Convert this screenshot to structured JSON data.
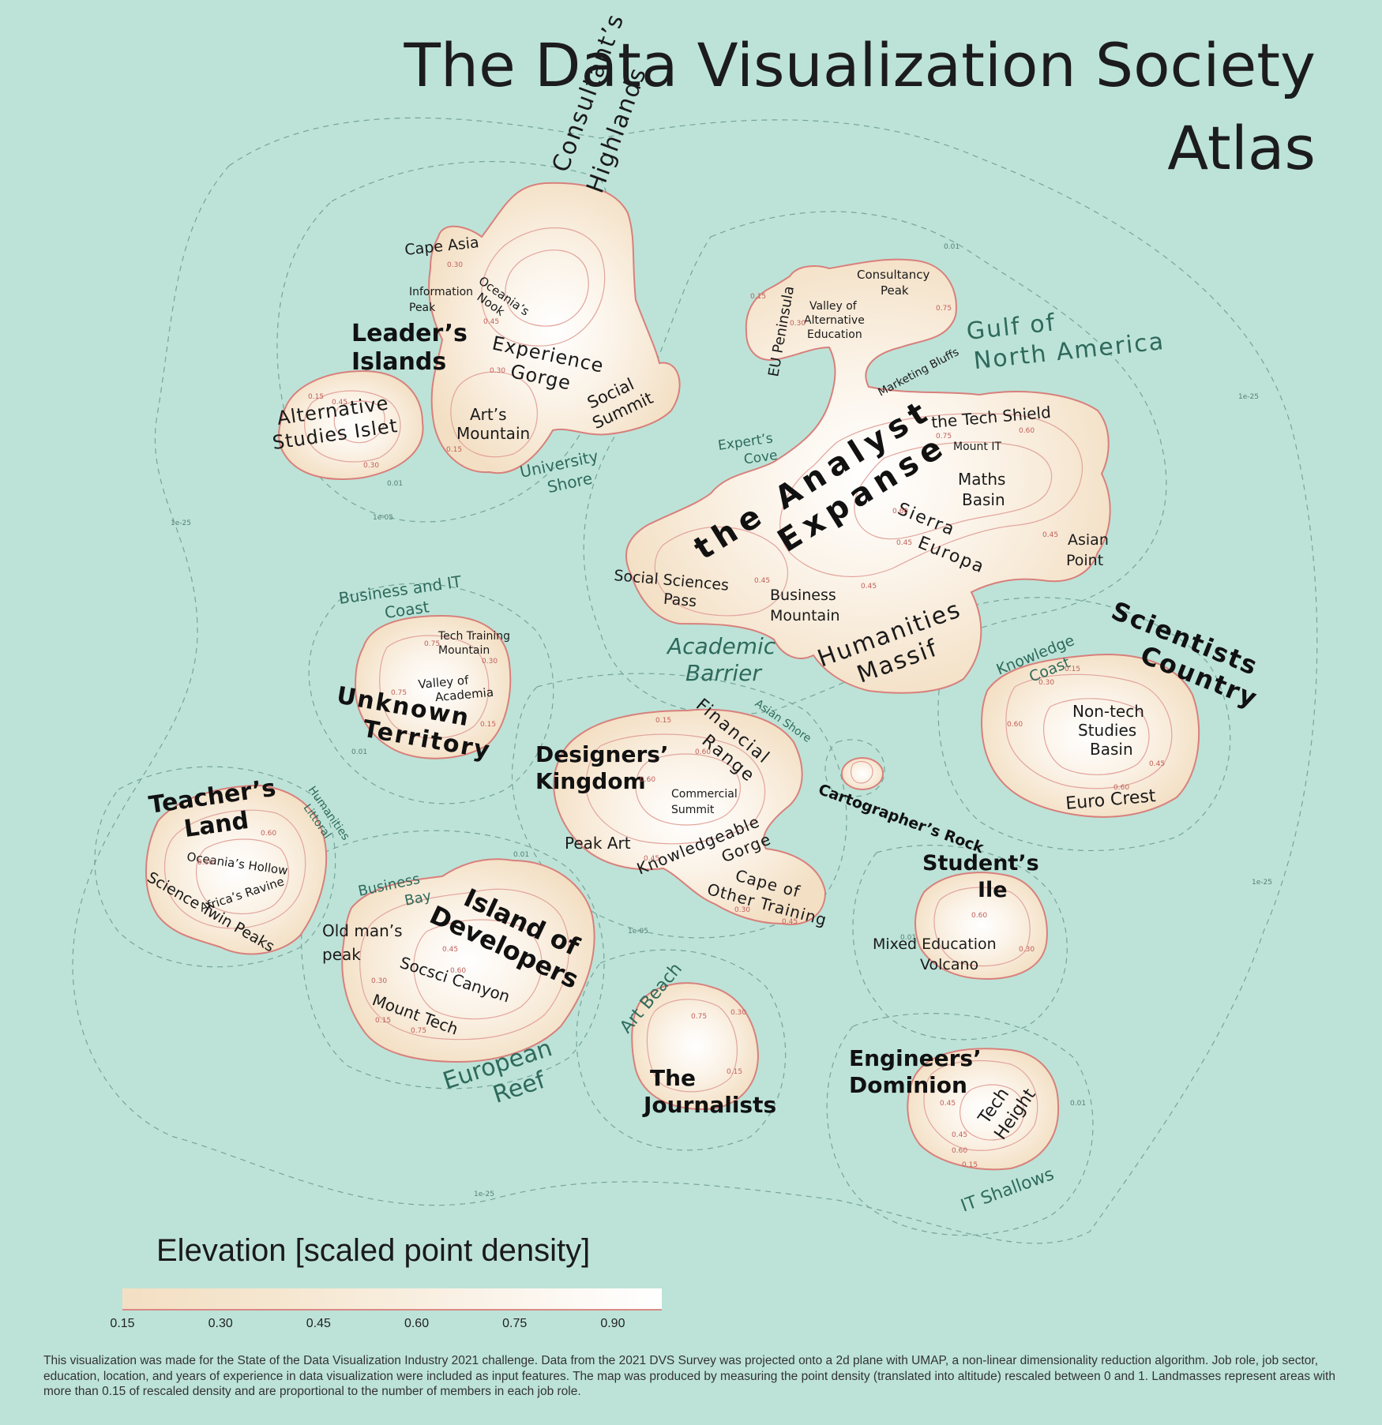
{
  "title": {
    "line1": "The Data Visualization Society",
    "line2": "Atlas"
  },
  "legend": {
    "title": "Elevation [scaled point density]",
    "ticks": [
      "0.15",
      "0.30",
      "0.45",
      "0.60",
      "0.75",
      "0.90"
    ],
    "ticks_values": [
      0.15,
      0.3,
      0.45,
      0.6,
      0.75,
      0.9
    ],
    "colors": {
      "low": "#f3dfc3",
      "high": "#ffffff",
      "contour": "#d88a86",
      "sea": "#bde3d8"
    }
  },
  "footnote": "This visualization was made for the State of the Data Visualization Industry 2021 challenge.  Data from the 2021 DVS Survey was projected onto a 2d plane with UMAP, a non-linear dimensionality reduction algorithm. Job role, job sector, education, location, and years of experience in data visualization were included as input features. The map was produced by measuring the point density (translated into altitude) rescaled between 0 and 1. Landmasses represent areas with more than 0.15 of rescaled density and are proportional to the number of members in each job role.",
  "regions": {
    "leaders_islands": [
      "Leader’s",
      "Islands"
    ],
    "consultants_highlands": [
      "Consultant’s",
      "Highlands"
    ],
    "analyst_expanse": [
      "the Analyst",
      "Expanse"
    ],
    "scientists_country": [
      "Scientists",
      "Country"
    ],
    "unknown_territory": [
      "Unknown",
      "Territory"
    ],
    "designers_kingdom": [
      "Designers’",
      "Kingdom"
    ],
    "teachers_land": [
      "Teacher’s",
      "Land"
    ],
    "island_of_developers": [
      "Island of",
      "Developers"
    ],
    "the_journalists": [
      "The",
      "Journalists"
    ],
    "students_ile": [
      "Student’s",
      "Ile"
    ],
    "engineers_dominion": [
      "Engineers’",
      "Dominion"
    ],
    "cartographers_rock": "Cartographer’s Rock"
  },
  "places": {
    "cape_asia": "Cape Asia",
    "oceanias_nook": [
      "Oceania’s",
      "Nook"
    ],
    "information_peak": [
      "Information",
      "Peak"
    ],
    "experience_gorge": [
      "Experience",
      "Gorge"
    ],
    "social_summit": [
      "Social",
      "Summit"
    ],
    "arts_mountain": [
      "Art’s",
      "Mountain"
    ],
    "alternative_studies_islet": [
      "Alternative",
      "Studies Islet"
    ],
    "eu_peninsula": "EU Peninsula",
    "consultancy_peak": [
      "Consultancy",
      "Peak"
    ],
    "valley_alt_education": [
      "Valley of",
      "Alternative",
      "Education"
    ],
    "marketing_bluffs": "Marketing Bluffs",
    "tech_shield": "the Tech Shield",
    "mount_it": "Mount IT",
    "maths_basin": [
      "Maths",
      "Basin"
    ],
    "sierra_europa": [
      "Sierra",
      "Europa"
    ],
    "asian_point": [
      "Asian",
      "Point"
    ],
    "social_sciences_pass": [
      "Social Sciences",
      "Pass"
    ],
    "business_mountain": [
      "Business",
      "Mountain"
    ],
    "humanities_massif": [
      "Humanities",
      "Massif"
    ],
    "tech_training_mountain": [
      "Tech Training",
      "Mountain"
    ],
    "valley_of_academia": [
      "Valley of",
      "Academia"
    ],
    "non_tech_studies_basin": [
      "Non-tech",
      "Studies",
      "Basin"
    ],
    "euro_crest": "Euro Crest",
    "financial_range": [
      "Financial",
      "Range"
    ],
    "commercial_summit": [
      "Commercial",
      "Summit"
    ],
    "peak_art": "Peak Art",
    "knowledgeable_gorge": [
      "Knowledgeable",
      "Gorge"
    ],
    "cape_other_training": [
      "Cape of",
      "Other Training"
    ],
    "oceanias_hollow": "Oceania’s Hollow",
    "africas_ravine": "Africa’s Ravine",
    "science_twin_peaks": "Science Twin Peaks",
    "old_mans_peak": [
      "Old man’s",
      "peak"
    ],
    "socsci_canyon": "Socsci Canyon",
    "mount_tech": "Mount Tech",
    "mixed_education_volcano": [
      "Mixed Education",
      "Volcano"
    ],
    "tech_height": [
      "Tech",
      "Height"
    ]
  },
  "waters": {
    "university_shore": [
      "University",
      "Shore"
    ],
    "experts_cove": [
      "Expert’s",
      "Cove"
    ],
    "gulf_north_america": [
      "Gulf of",
      "North America"
    ],
    "business_it_coast": [
      "Business and IT",
      "Coast"
    ],
    "academic_barrier": [
      "Academic",
      "Barrier"
    ],
    "knowledge_coast": [
      "Knowledge",
      "Coast"
    ],
    "asian_shore": "Asian Shore",
    "humanities_littoral": [
      "Humanities",
      "Littoral"
    ],
    "business_bay": [
      "Business",
      "Bay"
    ],
    "art_beach": "Art Beach",
    "european_reef": [
      "European",
      "Reef"
    ],
    "it_shallows": "IT Shallows"
  },
  "contour_labels": [
    "0.01",
    "1e-05",
    "1e-25",
    "0.15",
    "0.30",
    "0.45",
    "0.60",
    "0.75"
  ]
}
